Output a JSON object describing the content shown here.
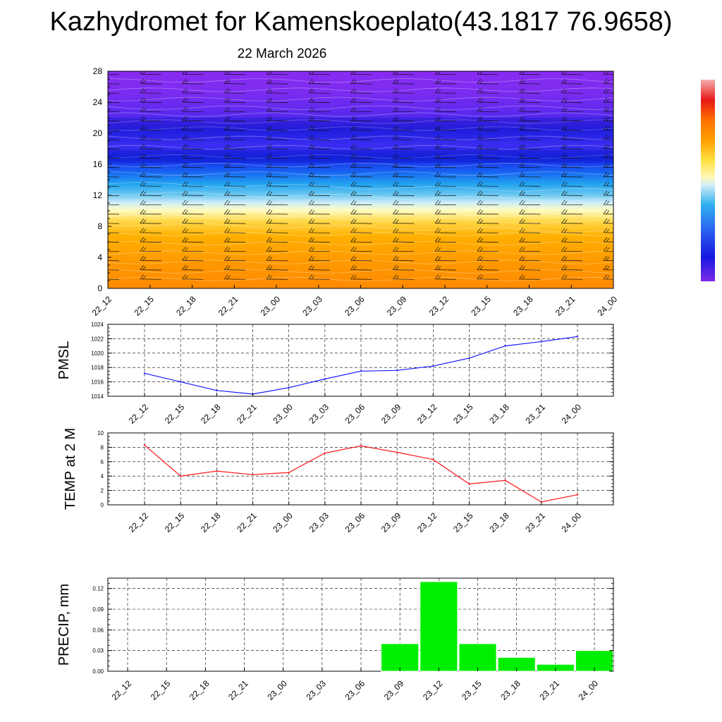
{
  "title": "Kazhydromet for Kamenskoeplato(43.1817 76.9658)",
  "date": "22 March 2026",
  "colors": {
    "pmsl_line": "#1a1aff",
    "temp_line": "#ff1a1a",
    "precip_bar": "#00ee00",
    "grid": "#000000"
  },
  "chart_data": [
    {
      "type": "heatmap",
      "name": "cross-section",
      "x": [
        "22_12",
        "22_15",
        "22_18",
        "22_21",
        "23_00",
        "23_03",
        "23_06",
        "23_09",
        "23_12",
        "23_15",
        "23_18",
        "23_21",
        "24_00"
      ],
      "y_ticks": [
        "0",
        "4",
        "8",
        "12",
        "16",
        "20",
        "24",
        "28"
      ],
      "ylim": [
        0,
        28
      ],
      "legend": "colorbar right, purple (bottom) to red (top)"
    },
    {
      "type": "line",
      "name": "pmsl",
      "ylabel": "PMSL",
      "x": [
        "22_12",
        "22_15",
        "22_18",
        "22_21",
        "23_00",
        "23_03",
        "23_06",
        "23_09",
        "23_12",
        "23_15",
        "23_18",
        "23_21",
        "24_00"
      ],
      "values": [
        1017.2,
        1016.0,
        1014.8,
        1014.3,
        1015.2,
        1016.4,
        1017.5,
        1017.6,
        1018.2,
        1019.3,
        1021.0,
        1021.6,
        1022.3
      ],
      "ylim": [
        1014,
        1024
      ],
      "y_ticks": [
        "1014",
        "1016",
        "1018",
        "1020",
        "1022",
        "1024"
      ]
    },
    {
      "type": "line",
      "name": "temp",
      "ylabel": "TEMP at 2 M",
      "x": [
        "22_12",
        "22_15",
        "22_18",
        "22_21",
        "23_00",
        "23_03",
        "23_06",
        "23_09",
        "23_12",
        "23_15",
        "23_18",
        "23_21",
        "24_00"
      ],
      "values": [
        8.3,
        4.0,
        4.7,
        4.2,
        4.5,
        7.2,
        8.2,
        7.3,
        6.3,
        2.9,
        3.4,
        0.4,
        1.4
      ],
      "ylim": [
        0,
        10
      ],
      "y_ticks": [
        "0",
        "2",
        "4",
        "6",
        "8",
        "10"
      ]
    },
    {
      "type": "bar",
      "name": "precip",
      "ylabel": "PRECIP, mm",
      "x": [
        "22_12",
        "22_15",
        "22_18",
        "22_21",
        "23_00",
        "23_03",
        "23_06",
        "23_09",
        "23_12",
        "23_15",
        "23_18",
        "23_21",
        "24_00"
      ],
      "values": [
        0,
        0,
        0,
        0,
        0,
        0,
        0,
        0.04,
        0.13,
        0.04,
        0.02,
        0.01,
        0.03
      ],
      "ylim": [
        0,
        0.135
      ],
      "y_ticks": [
        "0.00",
        "0.03",
        "0.06",
        "0.09",
        "0.12"
      ]
    }
  ]
}
